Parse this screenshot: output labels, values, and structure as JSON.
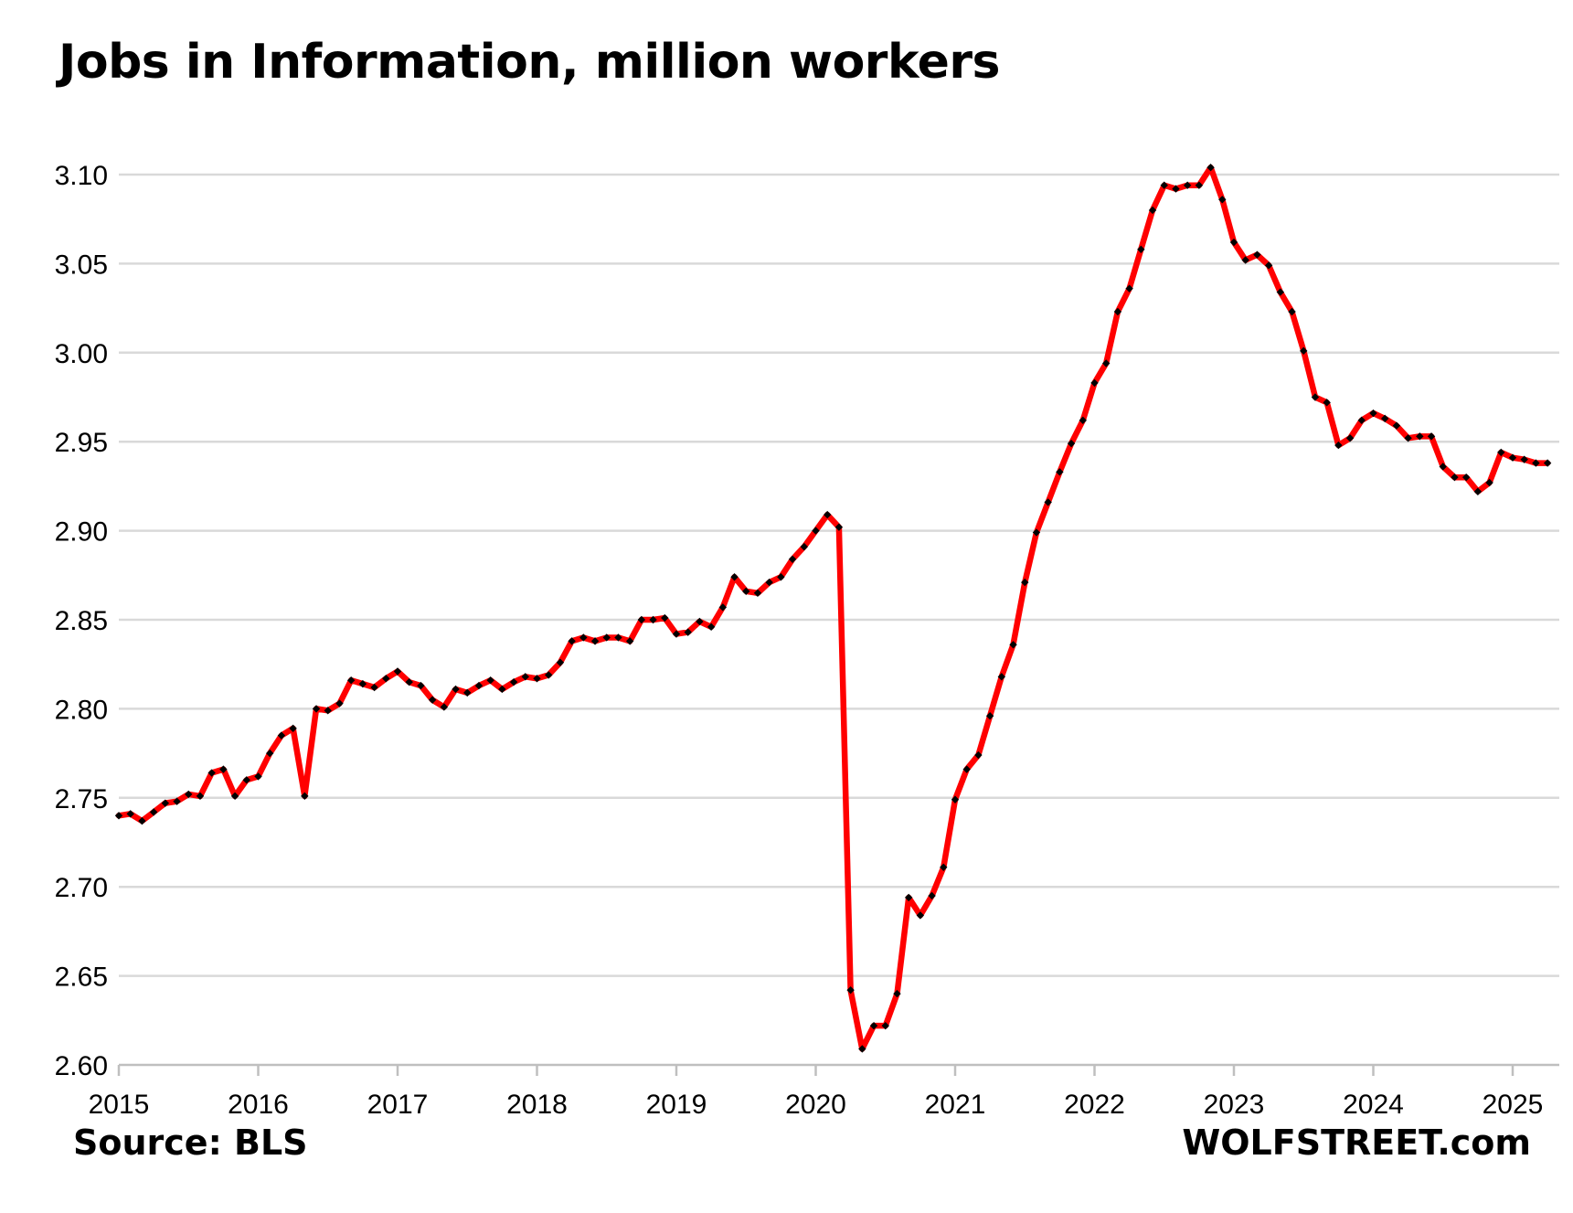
{
  "chart_data": {
    "type": "line",
    "title": "Jobs in Information, million workers",
    "source": "Source: BLS",
    "brand": "WOLFSTREET.com",
    "xlabel": "",
    "ylabel": "",
    "ylim": [
      2.6,
      3.1
    ],
    "y_ticks": [
      "2.60",
      "2.65",
      "2.70",
      "2.75",
      "2.80",
      "2.85",
      "2.90",
      "2.95",
      "3.00",
      "3.05",
      "3.10"
    ],
    "x_ticks": [
      "2015",
      "2016",
      "2017",
      "2018",
      "2019",
      "2020",
      "2021",
      "2022",
      "2023",
      "2024",
      "2025"
    ],
    "x_start": "2015-01",
    "grid": true,
    "legend": "none",
    "line_color": "#ff0000",
    "marker_color": "#000000",
    "series": [
      {
        "values": [
          2.74,
          2.741,
          2.737,
          2.742,
          2.747,
          2.748,
          2.752,
          2.751,
          2.764,
          2.766,
          2.751,
          2.76,
          2.762,
          2.775,
          2.785,
          2.789,
          2.751,
          2.8,
          2.799,
          2.803,
          2.816,
          2.814,
          2.812,
          2.817,
          2.821,
          2.815,
          2.813,
          2.805,
          2.801,
          2.811,
          2.809,
          2.813,
          2.816,
          2.811,
          2.815,
          2.818,
          2.817,
          2.819,
          2.826,
          2.838,
          2.84,
          2.838,
          2.84,
          2.84,
          2.838,
          2.85,
          2.85,
          2.851,
          2.842,
          2.843,
          2.849,
          2.846,
          2.857,
          2.874,
          2.866,
          2.865,
          2.871,
          2.874,
          2.884,
          2.891,
          2.9,
          2.909,
          2.902,
          2.642,
          2.609,
          2.622,
          2.622,
          2.64,
          2.694,
          2.684,
          2.695,
          2.711,
          2.749,
          2.766,
          2.774,
          2.796,
          2.818,
          2.836,
          2.871,
          2.899,
          2.916,
          2.933,
          2.949,
          2.962,
          2.983,
          2.994,
          3.023,
          3.036,
          3.058,
          3.08,
          3.094,
          3.092,
          3.094,
          3.094,
          3.104,
          3.086,
          3.062,
          3.052,
          3.055,
          3.049,
          3.034,
          3.023,
          3.001,
          2.975,
          2.972,
          2.948,
          2.952,
          2.962,
          2.966,
          2.963,
          2.959,
          2.952,
          2.953,
          2.953,
          2.936,
          2.93,
          2.93,
          2.922,
          2.927,
          2.944,
          2.941,
          2.94,
          2.938,
          2.938
        ]
      }
    ]
  }
}
